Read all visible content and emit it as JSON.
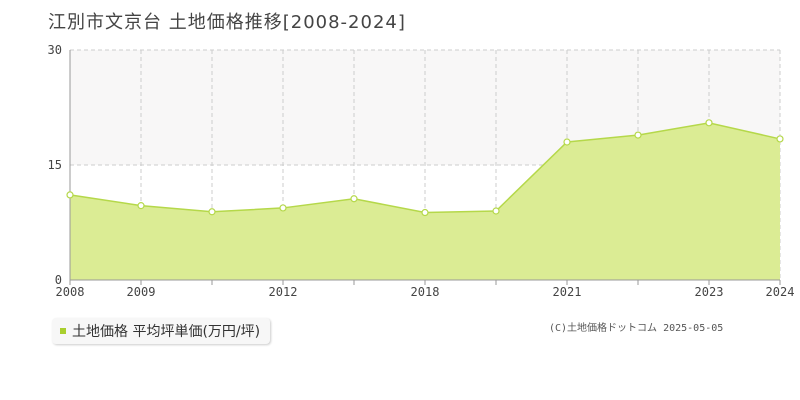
{
  "title": "江別市文京台 土地価格推移[2008-2024]",
  "legend_label": "土地価格 平均坪単価(万円/坪)",
  "copyright": "(C)土地価格ドットコム 2025-05-05",
  "colors": {
    "fill": "#dbec94",
    "line": "#b5d84a",
    "grid": "#cccccc",
    "axis": "#999999",
    "plot_bg": "#f8f7f7",
    "marker_fill": "#ffffff",
    "legend_swatch": "#a9cf2e"
  },
  "chart_data": {
    "type": "area",
    "title": "江別市文京台 土地価格推移[2008-2024]",
    "xlabel": "",
    "ylabel": "",
    "ylim": [
      0,
      30
    ],
    "yticks": [
      0,
      15,
      30
    ],
    "x": [
      2008,
      2009,
      2010,
      2012,
      2016,
      2018,
      2019,
      2021,
      2022,
      2023,
      2024
    ],
    "x_tick_labels": [
      "2008",
      "2009",
      "",
      "2012",
      "",
      "2018",
      "",
      "2021",
      "",
      "2023",
      "2024"
    ],
    "series": [
      {
        "name": "土地価格 平均坪単価(万円/坪)",
        "values": [
          11.1,
          9.7,
          8.9,
          9.4,
          10.6,
          8.8,
          9.0,
          18.0,
          18.9,
          20.5,
          18.4
        ]
      }
    ],
    "grid": true,
    "legend": "bottom-left"
  }
}
